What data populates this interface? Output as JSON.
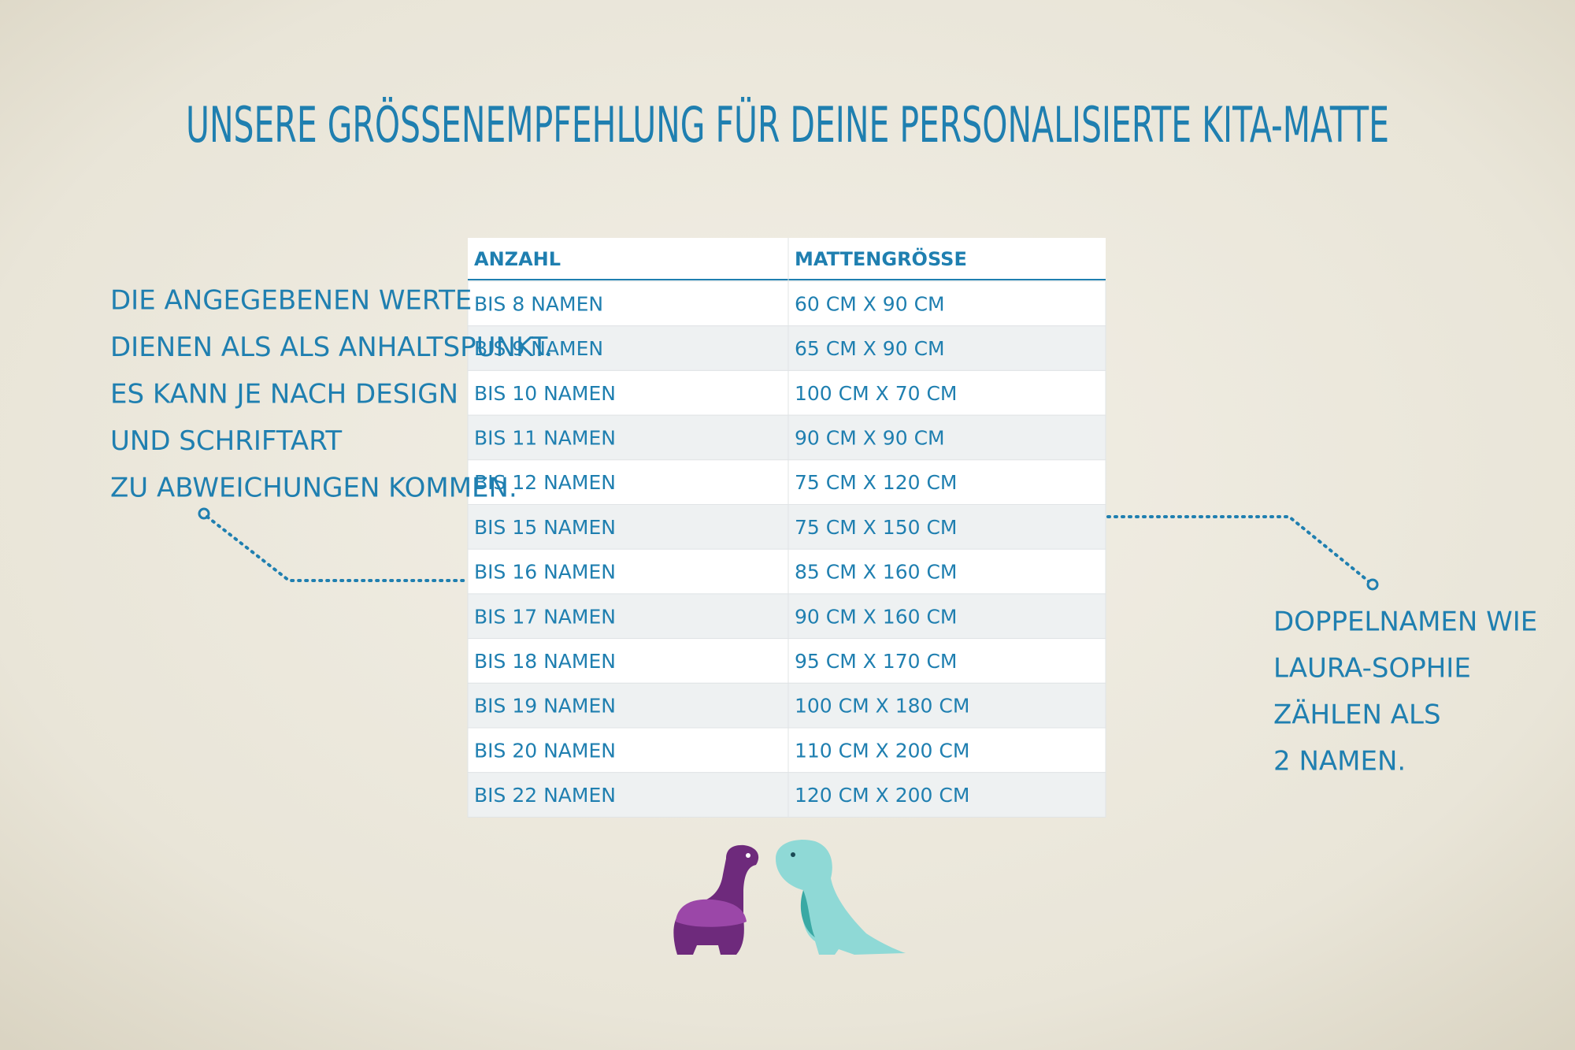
{
  "title": "UNSERE GRÖSSENEMPFEHLUNG FÜR DEINE PERSONALISIERTE KITA-MATTE",
  "table": {
    "header": [
      "ANZAHL",
      "MATTENGRÖSSE"
    ],
    "rows": [
      [
        "BIS 8 NAMEN",
        "60 CM X 90 CM"
      ],
      [
        "BIS 9 NAMEN",
        "65 CM X 90 CM"
      ],
      [
        "BIS 10 NAMEN",
        "100 CM X 70 CM"
      ],
      [
        "BIS 11 NAMEN",
        "90 CM X 90 CM"
      ],
      [
        "BIS 12 NAMEN",
        "75 CM X 120 CM"
      ],
      [
        "BIS 15 NAMEN",
        "75 CM X 150 CM"
      ],
      [
        "BIS 16 NAMEN",
        "85 CM X 160 CM"
      ],
      [
        "BIS 17 NAMEN",
        "90 CM X 160 CM"
      ],
      [
        "BIS 18 NAMEN",
        "95 CM X 170 CM"
      ],
      [
        "BIS 19 NAMEN",
        "100 CM X 180 CM"
      ],
      [
        "BIS 20 NAMEN",
        "110 CM X 200 CM"
      ],
      [
        "BIS 22 NAMEN",
        "120 CM X 200 CM"
      ]
    ]
  },
  "left_note": [
    "DIE ANGEGEBENEN WERTE",
    "DIENEN ALS ALS ANHALTSPUNKT.",
    "ES KANN JE NACH DESIGN",
    "UND SCHRIFTART",
    "ZU ABWEICHUNGEN KOMMEN."
  ],
  "right_note": [
    "DOPPELNAMEN WIE",
    "LAURA-SOPHIE",
    "ZÄHLEN ALS",
    "2 NAMEN."
  ]
}
